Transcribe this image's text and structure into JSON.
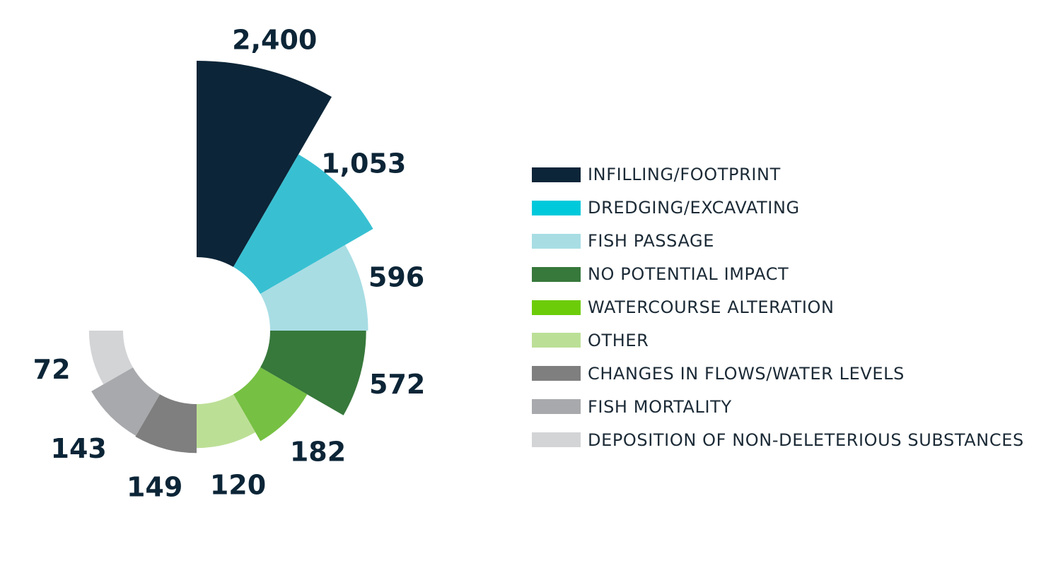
{
  "chart_data": {
    "type": "polar-area",
    "title": "",
    "legend_position": "right",
    "series": [
      {
        "name": "INFILLING/FOOTPRINT",
        "value": 2400,
        "label": "2,400",
        "color": "#0c2538"
      },
      {
        "name": "DREDGING/EXCAVATING",
        "value": 1053,
        "label": "1,053",
        "color": "#38c0d2"
      },
      {
        "name": "FISH PASSAGE",
        "value": 596,
        "label": "596",
        "color": "#a8dde4"
      },
      {
        "name": "NO POTENTIAL IMPACT",
        "value": 572,
        "label": "572",
        "color": "#37783b"
      },
      {
        "name": "WATERCOURSE ALTERATION",
        "value": 182,
        "label": "182",
        "color": "#76c043"
      },
      {
        "name": "OTHER",
        "value": 120,
        "label": "120",
        "color": "#bcdf96"
      },
      {
        "name": "CHANGES IN FLOWS/WATER LEVELS",
        "value": 149,
        "label": "149",
        "color": "#7f7f7f"
      },
      {
        "name": "FISH MORTALITY",
        "value": 143,
        "label": "143",
        "color": "#a8a9ac"
      },
      {
        "name": "DEPOSITION OF NON-DELETERIOUS SUBSTANCES",
        "value": 72,
        "label": "72",
        "color": "#d3d4d6"
      }
    ]
  },
  "legend": {
    "items": [
      {
        "label": "INFILLING/FOOTPRINT",
        "color": "#0c2538"
      },
      {
        "label": "DREDGING/EXCAVATING",
        "color": "#00c9db"
      },
      {
        "label": "FISH PASSAGE",
        "color": "#a8dde4"
      },
      {
        "label": "NO POTENTIAL IMPACT",
        "color": "#37783b"
      },
      {
        "label": "WATERCOURSE ALTERATION",
        "color": "#6dcc0a"
      },
      {
        "label": "OTHER",
        "color": "#bcdf96"
      },
      {
        "label": "CHANGES IN FLOWS/WATER LEVELS",
        "color": "#7f7f7f"
      },
      {
        "label": "FISH MORTALITY",
        "color": "#a8a9ac"
      },
      {
        "label": "DEPOSITION OF NON-DELETERIOUS SUBSTANCES",
        "color": "#d3d4d6"
      }
    ]
  }
}
